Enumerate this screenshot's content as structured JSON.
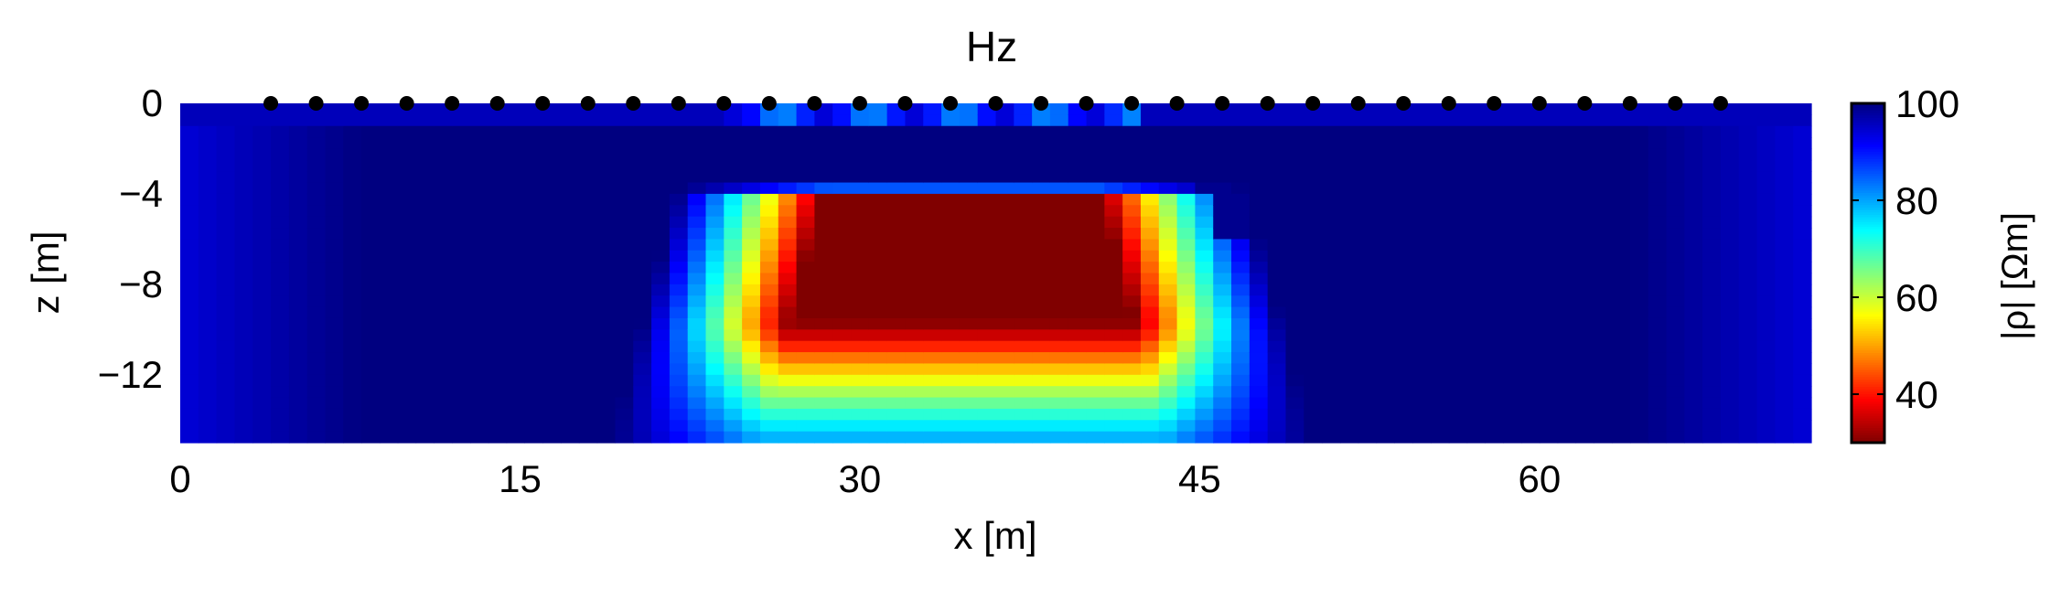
{
  "chart_data": {
    "type": "heatmap",
    "title": "Hz",
    "xlabel": "x [m]",
    "ylabel": "z [m]",
    "xlim": [
      0,
      72
    ],
    "ylim": [
      -15,
      0
    ],
    "xticks": [
      0,
      15,
      30,
      45,
      60
    ],
    "xtick_labels": [
      "0",
      "15",
      "30",
      "45",
      "60"
    ],
    "yticks": [
      0,
      -4,
      -8,
      -12
    ],
    "ytick_labels": [
      "0",
      "−4",
      "−8",
      "−12"
    ],
    "colorbar": {
      "label": "|ρ| [Ωm]",
      "min": 30,
      "max": 100,
      "ticks": [
        40,
        60,
        80,
        100
      ],
      "tick_labels": [
        "40",
        "60",
        "80",
        "100"
      ],
      "colormap": "jet"
    },
    "background_resistivity": 100,
    "anomaly": {
      "x_range": [
        26,
        43
      ],
      "z_top": -4,
      "z_bottom": -15,
      "min_resistivity": 30
    },
    "electrodes_x": [
      4,
      6,
      8,
      10,
      12,
      14,
      16,
      18,
      20,
      22,
      24,
      26,
      28,
      30,
      32,
      34,
      36,
      38,
      40,
      42,
      44,
      46,
      48,
      50,
      52,
      54,
      56,
      58,
      60,
      62,
      64,
      66,
      68
    ],
    "electrode_color": "#000000",
    "grid": false
  }
}
